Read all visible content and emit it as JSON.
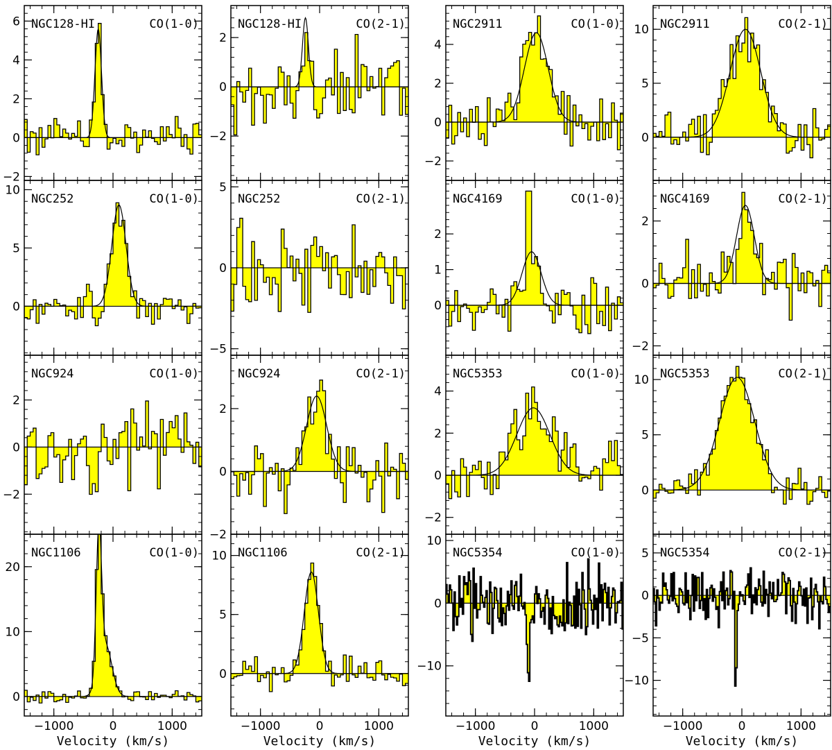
{
  "chart_data": {
    "type": "line",
    "title": "",
    "xlabel": "Velocity (km/s)",
    "ylabel": "",
    "xlim": [
      -1500,
      1500
    ],
    "xticks": [
      -1000,
      0,
      1000
    ],
    "colors": {
      "fill": "#ffff00",
      "line": "#000000",
      "background": "#ffffff"
    },
    "panels": [
      {
        "galaxy": "NGC128-HI",
        "line": "CO(1-0)",
        "ylim": [
          -2.2,
          6.8
        ],
        "yticks": [
          -2,
          0,
          2,
          4,
          6
        ],
        "gaussian": {
          "amp": 5.6,
          "center": -250,
          "sigma": 55
        },
        "seed": 11,
        "noise": 0.75,
        "spike": null
      },
      {
        "galaxy": "NGC128-HI",
        "line": "CO(2-1)",
        "ylim": [
          -3.8,
          3.3
        ],
        "yticks": [
          -2,
          0,
          2
        ],
        "gaussian": {
          "amp": 2.8,
          "center": -240,
          "sigma": 50
        },
        "seed": 12,
        "noise": 1.3,
        "spike": null
      },
      {
        "galaxy": "NGC2911",
        "line": "CO(1-0)",
        "ylim": [
          -3.0,
          6.0
        ],
        "yticks": [
          -2,
          0,
          2,
          4
        ],
        "gaussian": {
          "amp": 4.6,
          "center": 30,
          "sigma": 200
        },
        "seed": 13,
        "noise": 1.1,
        "spike": null
      },
      {
        "galaxy": "NGC2911",
        "line": "CO(2-1)",
        "ylim": [
          -4.0,
          12.2
        ],
        "yticks": [
          0,
          5,
          10
        ],
        "gaussian": {
          "amp": 10.0,
          "center": 60,
          "sigma": 260
        },
        "seed": 14,
        "noise": 1.5,
        "spike": null
      },
      {
        "galaxy": "NGC252",
        "line": "CO(1-0)",
        "ylim": [
          -4.2,
          10.8
        ],
        "yticks": [
          0,
          5,
          10
        ],
        "gaussian": {
          "amp": 8.7,
          "center": 100,
          "sigma": 120
        },
        "seed": 21,
        "noise": 1.2,
        "spike": null
      },
      {
        "galaxy": "NGC252",
        "line": "CO(2-1)",
        "ylim": [
          -5.4,
          5.4
        ],
        "yticks": [
          -5,
          0,
          5
        ],
        "gaussian": null,
        "seed": 22,
        "noise": 2.2,
        "spike": null
      },
      {
        "galaxy": "NGC4169",
        "line": "CO(1-0)",
        "ylim": [
          -1.4,
          3.5
        ],
        "yticks": [
          0,
          1,
          2
        ],
        "gaussian": {
          "amp": 1.5,
          "center": -50,
          "sigma": 160
        },
        "seed": 23,
        "noise": 0.6,
        "spike": {
          "x": -100,
          "y": 3.2
        }
      },
      {
        "galaxy": "NGC4169",
        "line": "CO(2-1)",
        "ylim": [
          -2.3,
          3.3
        ],
        "yticks": [
          -2,
          0,
          2
        ],
        "gaussian": {
          "amp": 2.5,
          "center": 60,
          "sigma": 150
        },
        "seed": 24,
        "noise": 0.75,
        "spike": null
      },
      {
        "galaxy": "NGC924",
        "line": "CO(1-0)",
        "ylim": [
          -3.7,
          3.9
        ],
        "yticks": [
          -2,
          0,
          2
        ],
        "gaussian": null,
        "seed": 31,
        "noise": 1.3,
        "spike": null
      },
      {
        "galaxy": "NGC924",
        "line": "CO(2-1)",
        "ylim": [
          -2.0,
          3.7
        ],
        "yticks": [
          -2,
          0,
          2
        ],
        "gaussian": {
          "amp": 2.4,
          "center": -50,
          "sigma": 170
        },
        "seed": 32,
        "noise": 0.85,
        "spike": null
      },
      {
        "galaxy": "NGC5353",
        "line": "CO(1-0)",
        "ylim": [
          -2.8,
          5.7
        ],
        "yticks": [
          -2,
          0,
          2,
          4
        ],
        "gaussian": {
          "amp": 3.2,
          "center": -20,
          "sigma": 280
        },
        "seed": 33,
        "noise": 1.0,
        "spike": null
      },
      {
        "galaxy": "NGC5353",
        "line": "CO(2-1)",
        "ylim": [
          -4.0,
          12.2
        ],
        "yticks": [
          0,
          5,
          10
        ],
        "gaussian": {
          "amp": 10.2,
          "center": -80,
          "sigma": 300
        },
        "seed": 34,
        "noise": 1.2,
        "spike": null
      },
      {
        "galaxy": "NGC1106",
        "line": "CO(1-0)",
        "ylim": [
          -3.0,
          25.0
        ],
        "yticks": [
          0,
          10,
          20
        ],
        "gaussian": {
          "amp": 22.0,
          "center": -240,
          "sigma": 45
        },
        "gaussian2": {
          "amp": 8.0,
          "center": -130,
          "sigma": 110
        },
        "seed": 41,
        "noise": 0.7,
        "spike": null
      },
      {
        "galaxy": "NGC1106",
        "line": "CO(2-1)",
        "ylim": [
          -3.6,
          11.8
        ],
        "yticks": [
          0,
          5,
          10
        ],
        "gaussian": {
          "amp": 8.6,
          "center": -140,
          "sigma": 120
        },
        "seed": 42,
        "noise": 1.0,
        "spike": null
      },
      {
        "galaxy": "NGC5354",
        "line": "CO(1-0)",
        "ylim": [
          -18.0,
          11.0
        ],
        "yticks": [
          -10,
          0,
          10
        ],
        "gaussian": null,
        "absorption": {
          "amp": -16.0,
          "center": -100,
          "sigma": 15
        },
        "seed": 43,
        "noise": 3.8,
        "spike": null,
        "hires": true
      },
      {
        "galaxy": "NGC5354",
        "line": "CO(2-1)",
        "ylim": [
          -14.2,
          7.2
        ],
        "yticks": [
          -10,
          -5,
          0,
          5
        ],
        "gaussian": null,
        "absorption": {
          "amp": -13.0,
          "center": -100,
          "sigma": 15
        },
        "seed": 44,
        "noise": 2.2,
        "spike": null,
        "hires": true
      }
    ]
  }
}
